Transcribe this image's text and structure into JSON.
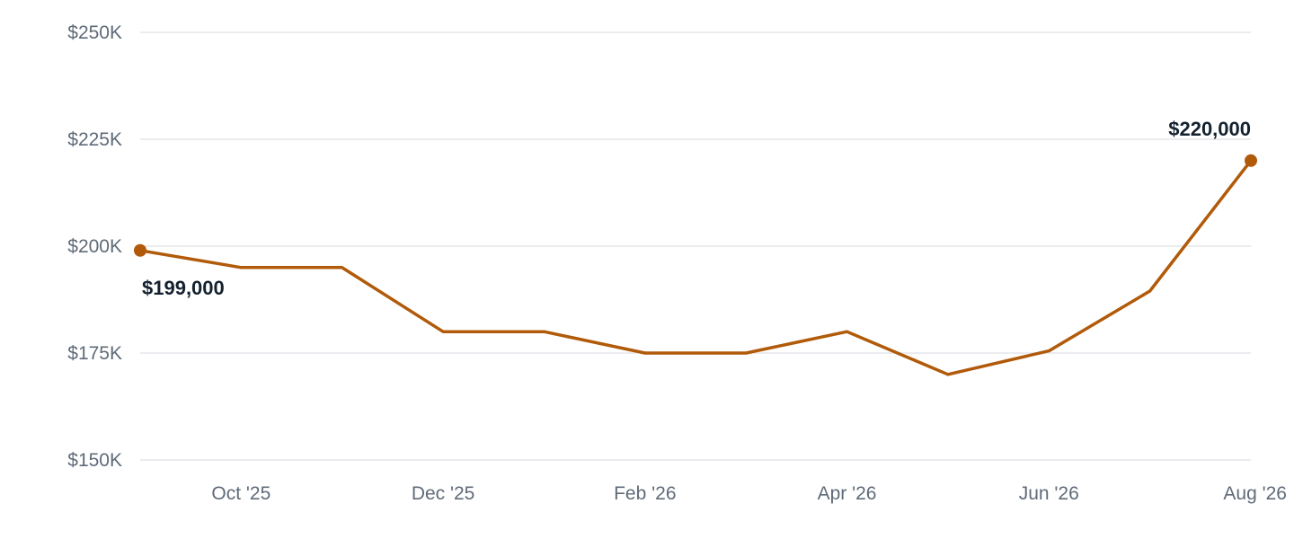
{
  "chart_data": {
    "type": "line",
    "title": "",
    "xlabel": "",
    "ylabel": "",
    "ylim": [
      150000,
      250000
    ],
    "y_ticks": [
      150000,
      175000,
      200000,
      225000,
      250000
    ],
    "y_tick_labels": [
      "$150K",
      "$175K",
      "$200K",
      "$225K",
      "$250K"
    ],
    "x_tick_labels": [
      "Oct '25",
      "Dec '25",
      "Feb '26",
      "Apr '26",
      "Jun '26",
      "Aug '26"
    ],
    "x_tick_months": [
      "2025-10",
      "2025-12",
      "2026-02",
      "2026-04",
      "2026-06",
      "2026-08"
    ],
    "grid": true,
    "legend": "none",
    "line_color": "#b15a0a",
    "series": [
      {
        "x": [
          "2025-09",
          "2025-10",
          "2025-11",
          "2025-12",
          "2026-01",
          "2026-02",
          "2026-03",
          "2026-04",
          "2026-05",
          "2026-06",
          "2026-07",
          "2026-08"
        ],
        "values": [
          199000,
          195000,
          195000,
          180000,
          180000,
          175000,
          175000,
          180000,
          170000,
          175500,
          189500,
          220000
        ]
      }
    ],
    "annotations": [
      {
        "x": "2025-09",
        "value": 199000,
        "text": "$199,000",
        "position": "below"
      },
      {
        "x": "2026-08",
        "value": 220000,
        "text": "$220,000",
        "position": "above"
      }
    ]
  }
}
